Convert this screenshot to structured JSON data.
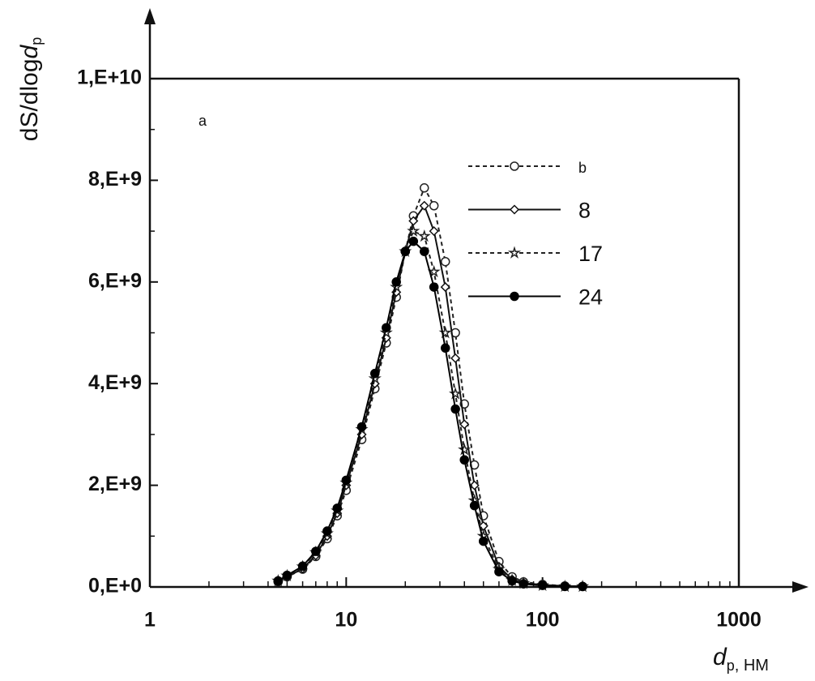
{
  "chart_data": {
    "type": "line",
    "ylabel": [
      "dS/dlog",
      "d",
      "p"
    ],
    "xlabel": [
      "d",
      "p",
      ", НМ"
    ],
    "annotation": "a",
    "log_x": true,
    "xlim": [
      1,
      1000
    ],
    "xticks": [
      1,
      10,
      100,
      1000
    ],
    "ylim": [
      0,
      10000000000.0
    ],
    "yticks": [
      {
        "value": 0,
        "label": "0,E+0"
      },
      {
        "value": 2000000000.0,
        "label": "2,E+9"
      },
      {
        "value": 4000000000.0,
        "label": "4,E+9"
      },
      {
        "value": 6000000000.0,
        "label": "6,E+9"
      },
      {
        "value": 8000000000.0,
        "label": "8,E+9"
      },
      {
        "value": 10000000000.0,
        "label": "1,E+10"
      }
    ],
    "x": [
      4.5,
      5,
      6,
      7,
      8,
      9,
      10,
      12,
      14,
      16,
      18,
      20,
      22,
      25,
      28,
      32,
      36,
      40,
      45,
      50,
      60,
      70,
      80,
      100,
      130,
      160
    ],
    "series": [
      {
        "name": "b",
        "color": "#222222",
        "dash": true,
        "marker": "circle",
        "values": [
          100000000.0,
          200000000.0,
          350000000.0,
          600000000.0,
          950000000.0,
          1400000000.0,
          1900000000.0,
          2900000000.0,
          3900000000.0,
          4800000000.0,
          5700000000.0,
          6600000000.0,
          7300000000.0,
          7850000000.0,
          7500000000.0,
          6400000000.0,
          5000000000.0,
          3600000000.0,
          2400000000.0,
          1400000000.0,
          500000000.0,
          200000000.0,
          100000000.0,
          50000000.0,
          20000000.0,
          10000000.0
        ]
      },
      {
        "name": "8",
        "color": "#111111",
        "dash": false,
        "marker": "diamond",
        "values": [
          100000000.0,
          200000000.0,
          360000000.0,
          620000000.0,
          1000000000.0,
          1450000000.0,
          2000000000.0,
          3000000000.0,
          4000000000.0,
          4900000000.0,
          5800000000.0,
          6600000000.0,
          7200000000.0,
          7500000000.0,
          7000000000.0,
          5900000000.0,
          4500000000.0,
          3200000000.0,
          2000000000.0,
          1200000000.0,
          400000000.0,
          150000000.0,
          80000000.0,
          40000000.0,
          20000000.0,
          10000000.0
        ]
      },
      {
        "name": "17",
        "color": "#222222",
        "dash": true,
        "marker": "star",
        "values": [
          120000000.0,
          220000000.0,
          400000000.0,
          680000000.0,
          1050000000.0,
          1500000000.0,
          2050000000.0,
          3100000000.0,
          4100000000.0,
          5000000000.0,
          5900000000.0,
          6600000000.0,
          7000000000.0,
          6900000000.0,
          6200000000.0,
          5000000000.0,
          3800000000.0,
          2700000000.0,
          1700000000.0,
          1000000000.0,
          350000000.0,
          130000000.0,
          70000000.0,
          30000000.0,
          10000000.0,
          10000000.0
        ]
      },
      {
        "name": "24",
        "color": "#000000",
        "dash": false,
        "marker": "asterisk",
        "values": [
          120000000.0,
          230000000.0,
          410000000.0,
          700000000.0,
          1100000000.0,
          1550000000.0,
          2100000000.0,
          3150000000.0,
          4200000000.0,
          5100000000.0,
          6000000000.0,
          6600000000.0,
          6800000000.0,
          6600000000.0,
          5900000000.0,
          4700000000.0,
          3500000000.0,
          2500000000.0,
          1600000000.0,
          900000000.0,
          300000000.0,
          120000000.0,
          60000000.0,
          30000000.0,
          10000000.0,
          10000000.0
        ]
      }
    ]
  }
}
